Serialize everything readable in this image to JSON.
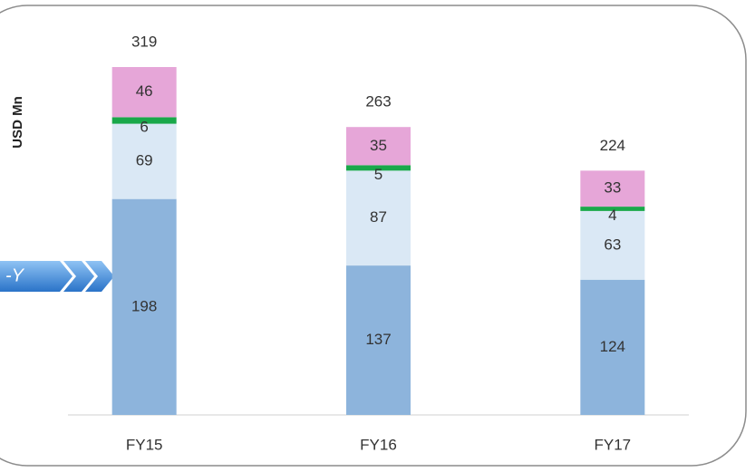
{
  "chart_data": {
    "type": "stacked_bar",
    "y_axis_label": "USD Mn",
    "arrow_label": "-Y",
    "categories": [
      "FY15",
      "FY16",
      "FY17"
    ],
    "series": [
      {
        "color": "#8db4dc",
        "values": [
          198,
          137,
          124
        ]
      },
      {
        "color": "#dae8f5",
        "values": [
          69,
          87,
          63
        ]
      },
      {
        "color": "#19a84a",
        "values": [
          6,
          5,
          4
        ]
      },
      {
        "color": "#e6a6d8",
        "values": [
          46,
          35,
          33
        ]
      }
    ],
    "totals": [
      319,
      263,
      224
    ]
  }
}
